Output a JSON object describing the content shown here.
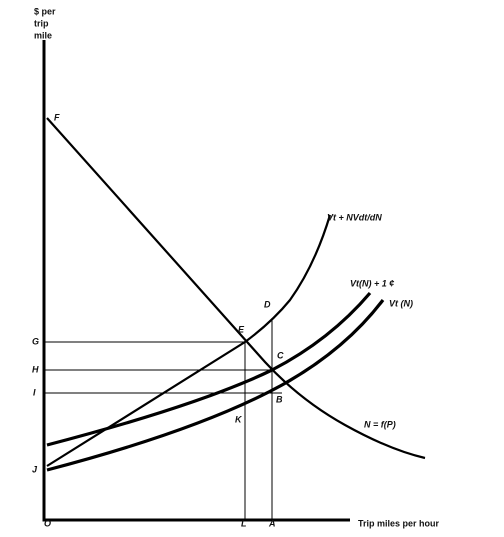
{
  "axis": {
    "y_label": [
      "$ per",
      "trip",
      "mile"
    ],
    "x_label": "Trip miles per hour",
    "origin": "O"
  },
  "points": {
    "F": "F",
    "D": "D",
    "E": "E",
    "C": "C",
    "B": "B",
    "K": "K",
    "G": "G",
    "H": "H",
    "I": "I",
    "J": "J",
    "L": "L",
    "A": "A"
  },
  "curves": {
    "marginal_cost": "Vt + NVdt/dN",
    "cost_plus_toll": "Vt(N) + 1 ¢",
    "average_cost": "Vt (N)",
    "demand": "N = f(P)"
  }
}
